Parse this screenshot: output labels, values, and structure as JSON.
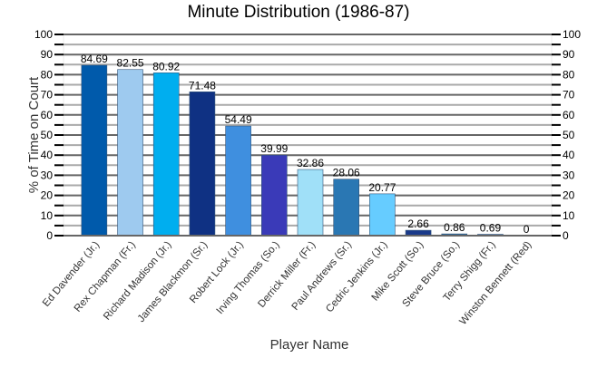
{
  "chart_data": {
    "type": "bar",
    "title": "Minute Distribution (1986-87)",
    "xlabel": "Player Name",
    "ylabel": "% of Time on Court",
    "ylim": [
      0,
      100
    ],
    "yticks": [
      0,
      10,
      20,
      30,
      40,
      50,
      60,
      70,
      80,
      90,
      100
    ],
    "grid": true,
    "categories": [
      "Ed Davender (Jr.)",
      "Rex Chapman (Fr.)",
      "Richard Madison (Jr.)",
      "James Blackmon (Sr.)",
      "Robert Lock (Jr.)",
      "Irving Thomas (So.)",
      "Derrick Miller (Fr.)",
      "Paul Andrews (Sr.)",
      "Cedric Jenkins (Jr.)",
      "Mike Scott (So.)",
      "Steve Bruce (So.)",
      "Terry Shigg (Fr.)",
      "Winston Bennett (Red)"
    ],
    "values": [
      84.69,
      82.55,
      80.92,
      71.48,
      54.49,
      39.99,
      32.86,
      28.06,
      20.77,
      2.66,
      0.86,
      0.69,
      0
    ],
    "labels": [
      "84.69",
      "82.55",
      "80.92",
      "71.48",
      "54.49",
      "39.99",
      "32.86",
      "28.06",
      "20.77",
      "2.66",
      "0.86",
      "0.69",
      "0"
    ],
    "colors": [
      "#005aab",
      "#9ecaef",
      "#00aeef",
      "#0f3183",
      "#3f8fdf",
      "#3a3ab8",
      "#a0e0f8",
      "#2a77b3",
      "#66ccff",
      "#1a3a8a",
      "#2a6aa0",
      "#8ab0d8",
      "#ffffff"
    ]
  }
}
